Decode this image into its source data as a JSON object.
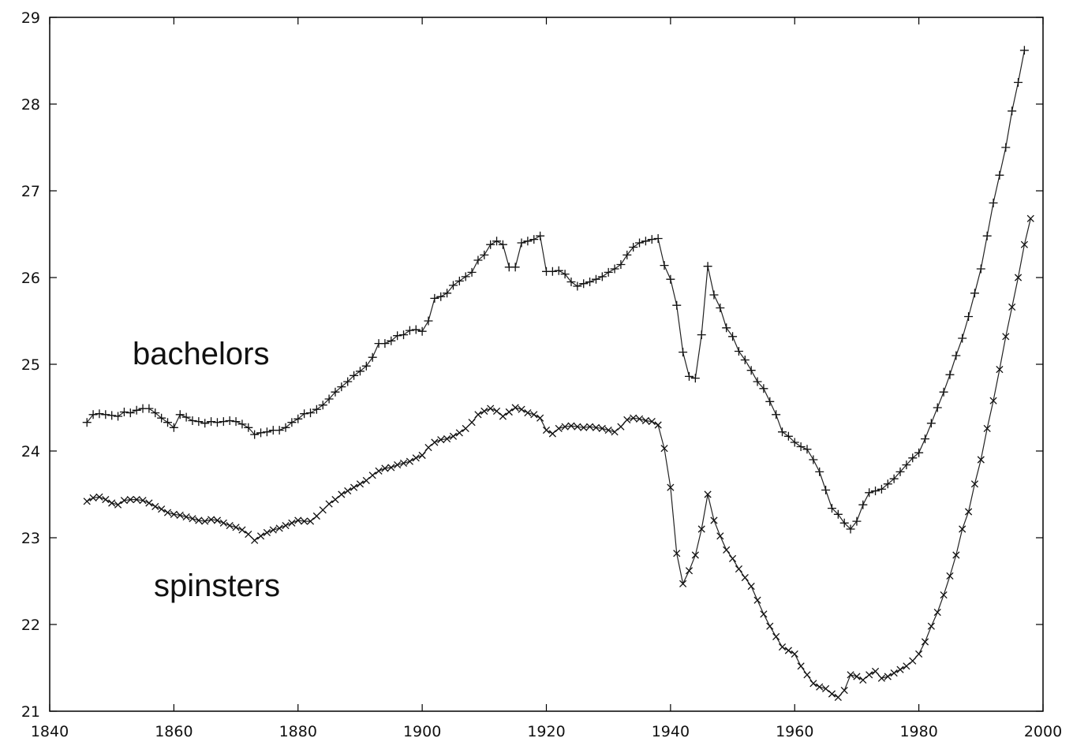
{
  "chart_data": {
    "type": "line",
    "title": "",
    "xlabel": "",
    "ylabel": "",
    "xlim": [
      1840,
      2000
    ],
    "ylim": [
      21,
      29
    ],
    "x_ticks": [
      1840,
      1860,
      1880,
      1900,
      1920,
      1940,
      1960,
      1980,
      2000
    ],
    "y_ticks": [
      21,
      22,
      23,
      24,
      25,
      26,
      27,
      28,
      29
    ],
    "grid": false,
    "legend": "none",
    "annotations": [
      {
        "text": "bachelors",
        "series": "bachelors"
      },
      {
        "text": "spinsters",
        "series": "spinsters"
      }
    ],
    "series": [
      {
        "name": "bachelors",
        "marker": "plus",
        "points": [
          [
            1846,
            24.33
          ],
          [
            1847,
            24.42
          ],
          [
            1848,
            24.43
          ],
          [
            1849,
            24.42
          ],
          [
            1850,
            24.41
          ],
          [
            1851,
            24.4
          ],
          [
            1852,
            24.45
          ],
          [
            1853,
            24.44
          ],
          [
            1854,
            24.47
          ],
          [
            1855,
            24.49
          ],
          [
            1856,
            24.49
          ],
          [
            1857,
            24.44
          ],
          [
            1858,
            24.38
          ],
          [
            1859,
            24.33
          ],
          [
            1860,
            24.27
          ],
          [
            1861,
            24.42
          ],
          [
            1862,
            24.39
          ],
          [
            1863,
            24.35
          ],
          [
            1864,
            24.34
          ],
          [
            1865,
            24.32
          ],
          [
            1866,
            24.34
          ],
          [
            1867,
            24.33
          ],
          [
            1868,
            24.34
          ],
          [
            1869,
            24.35
          ],
          [
            1870,
            24.34
          ],
          [
            1871,
            24.31
          ],
          [
            1872,
            24.27
          ],
          [
            1873,
            24.19
          ],
          [
            1874,
            24.21
          ],
          [
            1875,
            24.22
          ],
          [
            1876,
            24.24
          ],
          [
            1877,
            24.24
          ],
          [
            1878,
            24.27
          ],
          [
            1879,
            24.33
          ],
          [
            1880,
            24.37
          ],
          [
            1881,
            24.43
          ],
          [
            1882,
            24.44
          ],
          [
            1883,
            24.48
          ],
          [
            1884,
            24.53
          ],
          [
            1885,
            24.6
          ],
          [
            1886,
            24.68
          ],
          [
            1887,
            24.74
          ],
          [
            1888,
            24.8
          ],
          [
            1889,
            24.87
          ],
          [
            1890,
            24.92
          ],
          [
            1891,
            24.98
          ],
          [
            1892,
            25.08
          ],
          [
            1893,
            25.24
          ],
          [
            1894,
            25.24
          ],
          [
            1895,
            25.27
          ],
          [
            1896,
            25.33
          ],
          [
            1897,
            25.34
          ],
          [
            1898,
            25.39
          ],
          [
            1899,
            25.4
          ],
          [
            1900,
            25.38
          ],
          [
            1901,
            25.5
          ],
          [
            1902,
            25.76
          ],
          [
            1903,
            25.78
          ],
          [
            1904,
            25.82
          ],
          [
            1905,
            25.91
          ],
          [
            1906,
            25.96
          ],
          [
            1907,
            26.01
          ],
          [
            1908,
            26.06
          ],
          [
            1909,
            26.2
          ],
          [
            1910,
            26.26
          ],
          [
            1911,
            26.38
          ],
          [
            1912,
            26.42
          ],
          [
            1913,
            26.38
          ],
          [
            1914,
            26.12
          ],
          [
            1915,
            26.12
          ],
          [
            1916,
            26.4
          ],
          [
            1917,
            26.42
          ],
          [
            1918,
            26.44
          ],
          [
            1919,
            26.48
          ],
          [
            1920,
            26.07
          ],
          [
            1921,
            26.07
          ],
          [
            1922,
            26.08
          ],
          [
            1923,
            26.04
          ],
          [
            1924,
            25.95
          ],
          [
            1925,
            25.9
          ],
          [
            1926,
            25.93
          ],
          [
            1927,
            25.95
          ],
          [
            1928,
            25.98
          ],
          [
            1929,
            26.01
          ],
          [
            1930,
            26.06
          ],
          [
            1931,
            26.1
          ],
          [
            1932,
            26.15
          ],
          [
            1933,
            26.26
          ],
          [
            1934,
            26.35
          ],
          [
            1935,
            26.4
          ],
          [
            1936,
            26.42
          ],
          [
            1937,
            26.44
          ],
          [
            1938,
            26.45
          ],
          [
            1939,
            26.14
          ],
          [
            1940,
            25.98
          ],
          [
            1941,
            25.68
          ],
          [
            1942,
            25.14
          ],
          [
            1943,
            24.86
          ],
          [
            1944,
            24.84
          ],
          [
            1945,
            25.34
          ],
          [
            1946,
            26.13
          ],
          [
            1947,
            25.8
          ],
          [
            1948,
            25.65
          ],
          [
            1949,
            25.42
          ],
          [
            1950,
            25.32
          ],
          [
            1951,
            25.15
          ],
          [
            1952,
            25.05
          ],
          [
            1953,
            24.93
          ],
          [
            1954,
            24.8
          ],
          [
            1955,
            24.72
          ],
          [
            1956,
            24.57
          ],
          [
            1957,
            24.42
          ],
          [
            1958,
            24.22
          ],
          [
            1959,
            24.17
          ],
          [
            1960,
            24.1
          ],
          [
            1961,
            24.05
          ],
          [
            1962,
            24.02
          ],
          [
            1963,
            23.9
          ],
          [
            1964,
            23.76
          ],
          [
            1965,
            23.55
          ],
          [
            1966,
            23.34
          ],
          [
            1967,
            23.27
          ],
          [
            1968,
            23.17
          ],
          [
            1969,
            23.1
          ],
          [
            1970,
            23.19
          ],
          [
            1971,
            23.38
          ],
          [
            1972,
            23.52
          ],
          [
            1973,
            23.54
          ],
          [
            1974,
            23.56
          ],
          [
            1975,
            23.62
          ],
          [
            1976,
            23.68
          ],
          [
            1977,
            23.76
          ],
          [
            1978,
            23.84
          ],
          [
            1979,
            23.92
          ],
          [
            1980,
            23.98
          ],
          [
            1981,
            24.14
          ],
          [
            1982,
            24.32
          ],
          [
            1983,
            24.5
          ],
          [
            1984,
            24.68
          ],
          [
            1985,
            24.88
          ],
          [
            1986,
            25.1
          ],
          [
            1987,
            25.3
          ],
          [
            1988,
            25.55
          ],
          [
            1989,
            25.82
          ],
          [
            1990,
            26.1
          ],
          [
            1991,
            26.48
          ],
          [
            1992,
            26.86
          ],
          [
            1993,
            27.18
          ],
          [
            1994,
            27.5
          ],
          [
            1995,
            27.92
          ],
          [
            1996,
            28.25
          ],
          [
            1997,
            28.62
          ]
        ]
      },
      {
        "name": "spinsters",
        "marker": "cross",
        "points": [
          [
            1846,
            23.42
          ],
          [
            1847,
            23.46
          ],
          [
            1848,
            23.47
          ],
          [
            1849,
            23.44
          ],
          [
            1850,
            23.4
          ],
          [
            1851,
            23.38
          ],
          [
            1852,
            23.43
          ],
          [
            1853,
            23.44
          ],
          [
            1854,
            23.44
          ],
          [
            1855,
            23.43
          ],
          [
            1856,
            23.4
          ],
          [
            1857,
            23.36
          ],
          [
            1858,
            23.33
          ],
          [
            1859,
            23.29
          ],
          [
            1860,
            23.27
          ],
          [
            1861,
            23.26
          ],
          [
            1862,
            23.24
          ],
          [
            1863,
            23.22
          ],
          [
            1864,
            23.2
          ],
          [
            1865,
            23.19
          ],
          [
            1866,
            23.21
          ],
          [
            1867,
            23.2
          ],
          [
            1868,
            23.17
          ],
          [
            1869,
            23.14
          ],
          [
            1870,
            23.12
          ],
          [
            1871,
            23.09
          ],
          [
            1872,
            23.04
          ],
          [
            1873,
            22.97
          ],
          [
            1874,
            23.02
          ],
          [
            1875,
            23.06
          ],
          [
            1876,
            23.09
          ],
          [
            1877,
            23.11
          ],
          [
            1878,
            23.14
          ],
          [
            1879,
            23.17
          ],
          [
            1880,
            23.2
          ],
          [
            1881,
            23.19
          ],
          [
            1882,
            23.19
          ],
          [
            1883,
            23.25
          ],
          [
            1884,
            23.32
          ],
          [
            1885,
            23.39
          ],
          [
            1886,
            23.44
          ],
          [
            1887,
            23.5
          ],
          [
            1888,
            23.54
          ],
          [
            1889,
            23.58
          ],
          [
            1890,
            23.62
          ],
          [
            1891,
            23.66
          ],
          [
            1892,
            23.72
          ],
          [
            1893,
            23.77
          ],
          [
            1894,
            23.8
          ],
          [
            1895,
            23.81
          ],
          [
            1896,
            23.84
          ],
          [
            1897,
            23.86
          ],
          [
            1898,
            23.88
          ],
          [
            1899,
            23.92
          ],
          [
            1900,
            23.95
          ],
          [
            1901,
            24.04
          ],
          [
            1902,
            24.1
          ],
          [
            1903,
            24.13
          ],
          [
            1904,
            24.14
          ],
          [
            1905,
            24.17
          ],
          [
            1906,
            24.21
          ],
          [
            1907,
            24.26
          ],
          [
            1908,
            24.33
          ],
          [
            1909,
            24.42
          ],
          [
            1910,
            24.46
          ],
          [
            1911,
            24.49
          ],
          [
            1912,
            24.46
          ],
          [
            1913,
            24.4
          ],
          [
            1914,
            24.45
          ],
          [
            1915,
            24.5
          ],
          [
            1916,
            24.48
          ],
          [
            1917,
            24.44
          ],
          [
            1918,
            24.42
          ],
          [
            1919,
            24.38
          ],
          [
            1920,
            24.24
          ],
          [
            1921,
            24.2
          ],
          [
            1922,
            24.26
          ],
          [
            1923,
            24.28
          ],
          [
            1924,
            24.29
          ],
          [
            1925,
            24.28
          ],
          [
            1926,
            24.27
          ],
          [
            1927,
            24.28
          ],
          [
            1928,
            24.27
          ],
          [
            1929,
            24.26
          ],
          [
            1930,
            24.24
          ],
          [
            1931,
            24.22
          ],
          [
            1932,
            24.28
          ],
          [
            1933,
            24.36
          ],
          [
            1934,
            24.38
          ],
          [
            1935,
            24.37
          ],
          [
            1936,
            24.35
          ],
          [
            1937,
            24.34
          ],
          [
            1938,
            24.3
          ],
          [
            1939,
            24.03
          ],
          [
            1940,
            23.58
          ],
          [
            1941,
            22.82
          ],
          [
            1942,
            22.47
          ],
          [
            1943,
            22.62
          ],
          [
            1944,
            22.8
          ],
          [
            1945,
            23.1
          ],
          [
            1946,
            23.5
          ],
          [
            1947,
            23.2
          ],
          [
            1948,
            23.02
          ],
          [
            1949,
            22.86
          ],
          [
            1950,
            22.76
          ],
          [
            1951,
            22.64
          ],
          [
            1952,
            22.54
          ],
          [
            1953,
            22.44
          ],
          [
            1954,
            22.28
          ],
          [
            1955,
            22.12
          ],
          [
            1956,
            21.98
          ],
          [
            1957,
            21.86
          ],
          [
            1958,
            21.74
          ],
          [
            1959,
            21.7
          ],
          [
            1960,
            21.66
          ],
          [
            1961,
            21.52
          ],
          [
            1962,
            21.42
          ],
          [
            1963,
            21.32
          ],
          [
            1964,
            21.28
          ],
          [
            1965,
            21.26
          ],
          [
            1966,
            21.2
          ],
          [
            1967,
            21.16
          ],
          [
            1968,
            21.24
          ],
          [
            1969,
            21.42
          ],
          [
            1970,
            21.4
          ],
          [
            1971,
            21.36
          ],
          [
            1972,
            21.42
          ],
          [
            1973,
            21.46
          ],
          [
            1974,
            21.38
          ],
          [
            1975,
            21.4
          ],
          [
            1976,
            21.44
          ],
          [
            1977,
            21.48
          ],
          [
            1978,
            21.52
          ],
          [
            1979,
            21.58
          ],
          [
            1980,
            21.66
          ],
          [
            1981,
            21.8
          ],
          [
            1982,
            21.98
          ],
          [
            1983,
            22.14
          ],
          [
            1984,
            22.34
          ],
          [
            1985,
            22.56
          ],
          [
            1986,
            22.8
          ],
          [
            1987,
            23.1
          ],
          [
            1988,
            23.3
          ],
          [
            1989,
            23.62
          ],
          [
            1990,
            23.9
          ],
          [
            1991,
            24.26
          ],
          [
            1992,
            24.58
          ],
          [
            1993,
            24.94
          ],
          [
            1994,
            25.32
          ],
          [
            1995,
            25.66
          ],
          [
            1996,
            26.0
          ],
          [
            1997,
            26.38
          ],
          [
            1998,
            26.68
          ]
        ]
      }
    ]
  }
}
